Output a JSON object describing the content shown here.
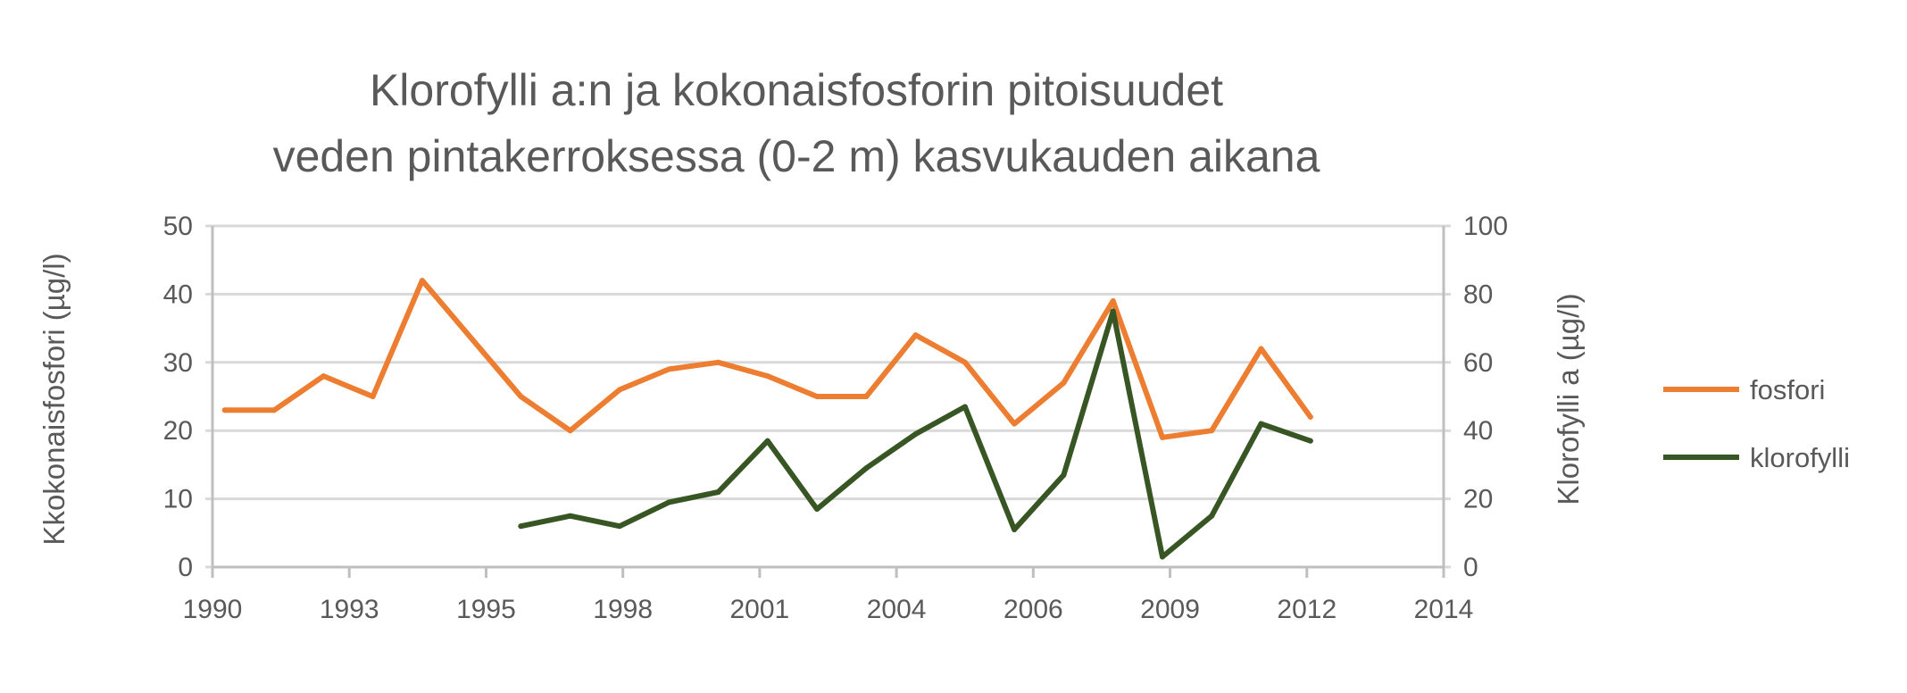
{
  "chart_data": {
    "type": "line",
    "title": [
      "Klorofylli a:n ja kokonaisfosforin pitoisuudet",
      "veden pintakerroksessa (0-2 m) kasvukauden aikana"
    ],
    "xlabel": "",
    "ylabel_left": "Kkokonaisfosfori (µg/l)",
    "ylabel_right": "Klorofylli a (µg/l)",
    "x_tick_labels": [
      "1990",
      "1993",
      "1995",
      "1998",
      "2001",
      "2004",
      "2006",
      "2009",
      "2012",
      "2014"
    ],
    "xlim": [
      1989.75,
      2014.7
    ],
    "ylim_left": [
      0,
      50
    ],
    "ylim_right": [
      0,
      100
    ],
    "y_ticks_left": [
      "0",
      "10",
      "20",
      "30",
      "40",
      "50"
    ],
    "y_ticks_right": [
      "0",
      "20",
      "40",
      "60",
      "80",
      "100"
    ],
    "grid": true,
    "legend_position": "right",
    "series": [
      {
        "name": "fosfori",
        "axis": "left",
        "color": "#ED7D31",
        "x": [
          1990,
          1991,
          1992,
          1993,
          1994,
          1996,
          1997,
          1998,
          1999,
          2000,
          2001,
          2002,
          2003,
          2004,
          2005,
          2006,
          2007,
          2008,
          2009,
          2010,
          2011,
          2012
        ],
        "values": [
          23,
          23,
          28,
          25,
          42,
          25,
          20,
          26,
          29,
          30,
          28,
          25,
          25,
          34,
          30,
          21,
          27,
          39,
          19,
          20,
          32,
          22
        ]
      },
      {
        "name": "klorofylli",
        "axis": "right",
        "color": "#375623",
        "x": [
          1996,
          1997,
          1998,
          1999,
          2000,
          2001,
          2002,
          2003,
          2004,
          2005,
          2006,
          2007,
          2008,
          2009,
          2010,
          2011,
          2012
        ],
        "values": [
          12,
          15,
          12,
          19,
          22,
          37,
          17,
          29,
          39,
          47,
          11,
          27,
          75,
          3,
          15,
          42,
          37
        ]
      }
    ]
  }
}
